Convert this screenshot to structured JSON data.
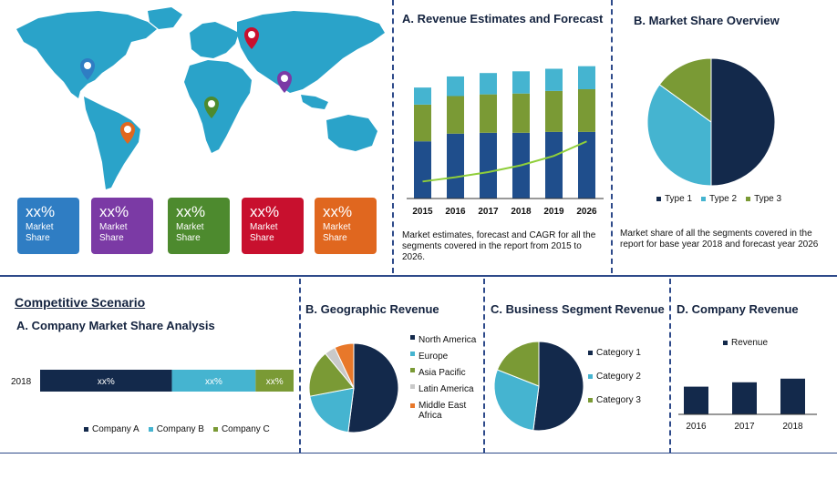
{
  "world_map": {
    "tiles": [
      {
        "value": "xx%",
        "label_line1": "Market",
        "label_line2": "Share",
        "color": "#2f7dc3"
      },
      {
        "value": "xx%",
        "label_line1": "Market",
        "label_line2": "Share",
        "color": "#7b3aa5"
      },
      {
        "value": "xx%",
        "label_line1": "Market",
        "label_line2": "Share",
        "color": "#4d8a2e"
      },
      {
        "value": "xx%",
        "label_line1": "Market",
        "label_line2": "Share",
        "color": "#c8102e"
      },
      {
        "value": "xx%",
        "label_line1": "Market",
        "label_line2": "Share",
        "color": "#e0671f"
      }
    ]
  },
  "revenue_panel": {
    "title": "A. Revenue Estimates and Forecast",
    "description": "Market estimates, forecast and CAGR for all the segments covered in the report from 2015 to 2026."
  },
  "share_panel": {
    "title": "B. Market Share Overview",
    "description": "Market share of all the segments covered in the report for base year 2018 and forecast year 2026"
  },
  "competitive": {
    "heading": "Competitive Scenario",
    "title": "A. Company Market Share Analysis"
  },
  "geo_panel": {
    "title": "B. Geographic Revenue"
  },
  "segment_panel": {
    "title": "C. Business Segment Revenue"
  },
  "company_panel": {
    "title": "D. Company Revenue"
  },
  "colors": {
    "navy": "#13294b",
    "teal": "#45b4d0",
    "olive": "#7a9a35",
    "light": "#c9c9c9",
    "orange": "#e8782a",
    "green_line": "#8fce3a",
    "border": "#2e4a8a"
  },
  "chart_data": [
    {
      "type": "bar",
      "stacked": true,
      "categories": [
        "2015",
        "2016",
        "2017",
        "2018",
        "2019",
        "2026"
      ],
      "series": [
        {
          "values": [
            67,
            76,
            77,
            77,
            78,
            78
          ],
          "color": "#1f4e8c"
        },
        {
          "values": [
            43,
            44,
            45,
            46,
            48,
            50
          ],
          "color": "#7a9a35"
        },
        {
          "values": [
            20,
            23,
            25,
            26,
            26,
            27
          ],
          "color": "#45b4d0"
        }
      ],
      "trend_line": [
        5,
        10,
        16,
        24,
        35,
        52
      ],
      "ylim": [
        0,
        160
      ],
      "grid": false
    },
    {
      "type": "pie",
      "labels": [
        "Type 1",
        "Type 2",
        "Type 3"
      ],
      "values": [
        50,
        35,
        15
      ],
      "colors": [
        "#13294b",
        "#45b4d0",
        "#7a9a35"
      ],
      "legend": "bottom"
    },
    {
      "type": "bar",
      "orientation": "horizontal",
      "stacked": true,
      "categories": [
        "2018"
      ],
      "series": [
        {
          "name": "Company  A",
          "values": [
            52
          ],
          "label": "xx%",
          "color": "#13294b"
        },
        {
          "name": "Company B",
          "values": [
            33
          ],
          "label": "xx%",
          "color": "#45b4d0"
        },
        {
          "name": "Company C",
          "values": [
            15
          ],
          "label": "xx%",
          "color": "#7a9a35"
        }
      ],
      "legend": "bottom"
    },
    {
      "type": "pie",
      "labels": [
        "North America",
        "Europe",
        "Asia Pacific",
        "Latin America",
        "Middle East Africa"
      ],
      "legend_lines": [
        [
          "North America"
        ],
        [
          "Europe"
        ],
        [
          "Asia Pacific"
        ],
        [
          "Latin America"
        ],
        [
          "Middle East",
          "Africa"
        ]
      ],
      "values": [
        52,
        20,
        17,
        4,
        7
      ],
      "colors": [
        "#13294b",
        "#45b4d0",
        "#7a9a35",
        "#c9c9c9",
        "#e8782a"
      ],
      "legend": "right"
    },
    {
      "type": "pie",
      "labels": [
        "Category 1",
        "Category 2",
        "Category 3"
      ],
      "values": [
        52,
        29,
        19
      ],
      "colors": [
        "#13294b",
        "#45b4d0",
        "#7a9a35"
      ],
      "legend": "right"
    },
    {
      "type": "bar",
      "categories": [
        "2016",
        "2017",
        "2018"
      ],
      "series": [
        {
          "name": "Revenue",
          "values": [
            38,
            44,
            49
          ],
          "color": "#13294b"
        }
      ],
      "ylim": [
        0,
        100
      ],
      "legend": "top"
    }
  ]
}
